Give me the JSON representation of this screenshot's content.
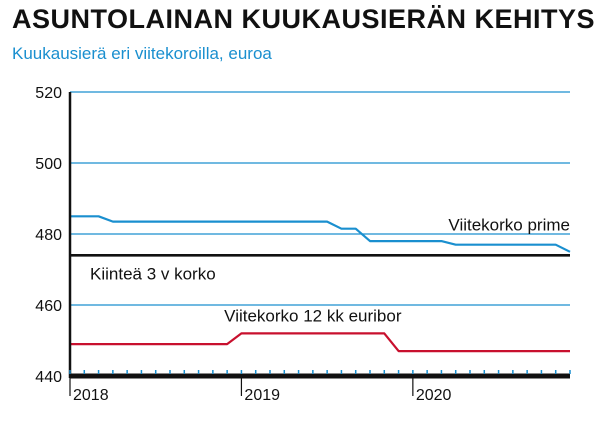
{
  "header": {
    "title": "ASUNTOLAINAN KUUKAUSIERÄN KEHITYS",
    "subtitle": "Kuukausierä eri viitekoroilla, euroa"
  },
  "colors": {
    "prime": "#1a8fcf",
    "fixed": "#111111",
    "euribor": "#c8102e",
    "grid": "#1a8fcf",
    "axis": "#111111"
  },
  "chart_data": {
    "type": "line",
    "title": "ASUNTOLAINAN KUUKAUSIERÄN KEHITYS",
    "subtitle": "Kuukausierä eri viitekoroilla, euroa",
    "xlabel": "",
    "ylabel": "",
    "ylim": [
      440,
      520
    ],
    "yticks": [
      440,
      460,
      480,
      500,
      520
    ],
    "xlim": [
      "2018-01",
      "2020-12"
    ],
    "xticks": [
      "2018",
      "2019",
      "2020"
    ],
    "grid": true,
    "series": [
      {
        "name": "Viitekorko prime",
        "color": "#1a8fcf",
        "x": [
          "2018-01",
          "2018-03",
          "2018-04",
          "2019-07",
          "2019-08",
          "2019-09",
          "2019-10",
          "2020-03",
          "2020-04",
          "2020-11",
          "2020-12"
        ],
        "values": [
          485,
          485,
          483.5,
          483.5,
          481.5,
          481.5,
          478,
          478,
          477,
          477,
          475
        ]
      },
      {
        "name": "Kiinteä 3 v korko",
        "color": "#111111",
        "x": [
          "2018-01",
          "2020-12"
        ],
        "values": [
          474,
          474
        ]
      },
      {
        "name": "Viitekorko 12 kk euribor",
        "color": "#c8102e",
        "x": [
          "2018-01",
          "2018-12",
          "2019-01",
          "2019-11",
          "2019-12",
          "2020-12"
        ],
        "values": [
          449,
          449,
          452,
          452,
          447,
          447
        ]
      }
    ]
  }
}
